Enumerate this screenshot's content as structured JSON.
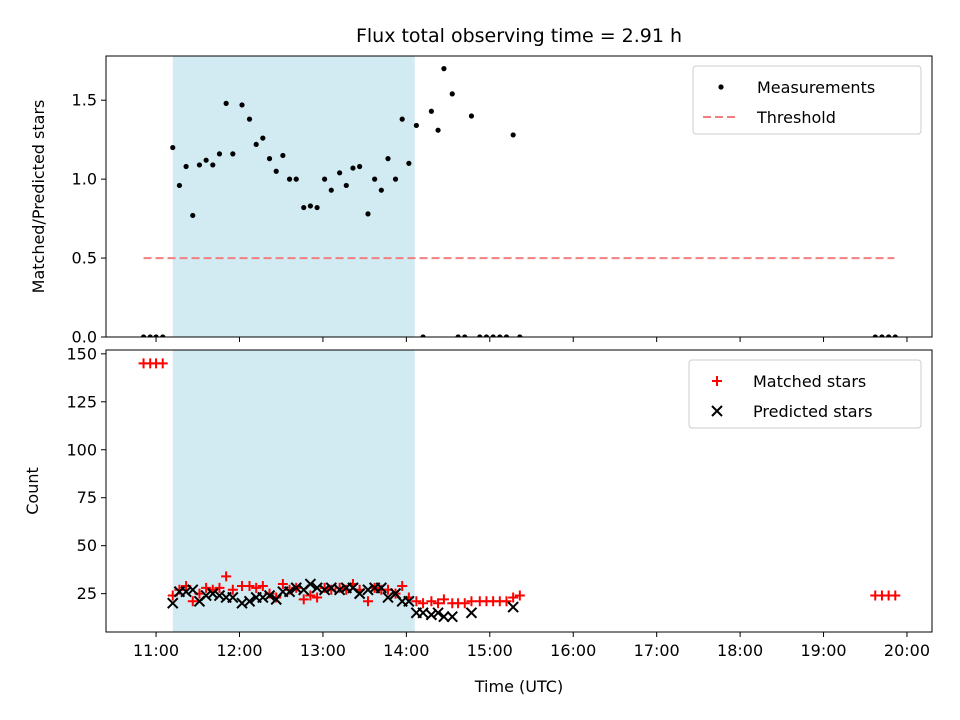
{
  "chart_data": [
    {
      "type": "scatter",
      "title": "Flux total observing time = 2.91 h",
      "ylabel": "Matched/Predicted stars",
      "xlabel": "",
      "ylim": [
        0,
        1.78
      ],
      "yticks": [
        "0.0",
        "0.5",
        "1.0",
        "1.5"
      ],
      "yticks_values": [
        0,
        0.5,
        1.0,
        1.5
      ],
      "legend_position": "top-right",
      "shaded_region": [
        11.2,
        14.1
      ],
      "shade_color": "#add8e6",
      "series": [
        {
          "name": "Measurements",
          "color": "#000000",
          "marker": "dot",
          "points": [
            [
              10.85,
              0
            ],
            [
              10.93,
              0
            ],
            [
              11.0,
              0
            ],
            [
              11.08,
              0
            ],
            [
              11.2,
              1.2
            ],
            [
              11.28,
              0.96
            ],
            [
              11.36,
              1.08
            ],
            [
              11.44,
              0.77
            ],
            [
              11.52,
              1.09
            ],
            [
              11.6,
              1.12
            ],
            [
              11.68,
              1.09
            ],
            [
              11.76,
              1.16
            ],
            [
              11.84,
              1.48
            ],
            [
              11.92,
              1.16
            ],
            [
              12.03,
              1.47
            ],
            [
              12.12,
              1.38
            ],
            [
              12.2,
              1.22
            ],
            [
              12.28,
              1.26
            ],
            [
              12.36,
              1.13
            ],
            [
              12.44,
              1.05
            ],
            [
              12.52,
              1.15
            ],
            [
              12.6,
              1.0
            ],
            [
              12.68,
              1.0
            ],
            [
              12.77,
              0.82
            ],
            [
              12.85,
              0.83
            ],
            [
              12.93,
              0.82
            ],
            [
              13.02,
              1.0
            ],
            [
              13.1,
              0.93
            ],
            [
              13.2,
              1.04
            ],
            [
              13.28,
              0.96
            ],
            [
              13.36,
              1.07
            ],
            [
              13.44,
              1.08
            ],
            [
              13.54,
              0.78
            ],
            [
              13.62,
              1.0
            ],
            [
              13.7,
              0.93
            ],
            [
              13.78,
              1.13
            ],
            [
              13.87,
              1.0
            ],
            [
              13.95,
              1.38
            ],
            [
              14.03,
              1.1
            ],
            [
              14.12,
              1.34
            ],
            [
              14.2,
              0
            ],
            [
              14.3,
              1.43
            ],
            [
              14.38,
              1.31
            ],
            [
              14.45,
              1.7
            ],
            [
              14.55,
              1.54
            ],
            [
              14.62,
              0
            ],
            [
              14.7,
              0
            ],
            [
              14.78,
              1.4
            ],
            [
              14.88,
              0
            ],
            [
              14.96,
              0
            ],
            [
              15.04,
              0
            ],
            [
              15.12,
              0
            ],
            [
              15.2,
              0
            ],
            [
              15.28,
              1.28
            ],
            [
              15.36,
              0
            ],
            [
              19.62,
              0
            ],
            [
              19.7,
              0
            ],
            [
              19.78,
              0
            ],
            [
              19.86,
              0
            ]
          ]
        },
        {
          "name": "Threshold",
          "color": "#f08080",
          "style": "dashed",
          "points": [
            [
              10.85,
              0.5
            ],
            [
              19.85,
              0.5
            ]
          ]
        }
      ]
    },
    {
      "type": "scatter",
      "title": "",
      "xlabel": "Time (UTC)",
      "ylabel": "Count",
      "ylim": [
        5,
        152
      ],
      "yticks": [
        "25",
        "50",
        "75",
        "100",
        "125",
        "150"
      ],
      "yticks_values": [
        25,
        50,
        75,
        100,
        125,
        150
      ],
      "xlim": [
        10.4,
        20.3
      ],
      "xticks": [
        "11:00",
        "12:00",
        "13:00",
        "14:00",
        "15:00",
        "16:00",
        "17:00",
        "18:00",
        "19:00",
        "20:00"
      ],
      "xticks_values": [
        11,
        12,
        13,
        14,
        15,
        16,
        17,
        18,
        19,
        20
      ],
      "legend_position": "top-right",
      "shaded_region": [
        11.2,
        14.1
      ],
      "shade_color": "#add8e6",
      "series": [
        {
          "name": "Matched stars",
          "color": "#ff0000",
          "marker": "plus",
          "points": [
            [
              10.85,
              145
            ],
            [
              10.93,
              145
            ],
            [
              11.0,
              145
            ],
            [
              11.08,
              145
            ],
            [
              11.2,
              24
            ],
            [
              11.28,
              27
            ],
            [
              11.36,
              29
            ],
            [
              11.44,
              21
            ],
            [
              11.52,
              25
            ],
            [
              11.6,
              28
            ],
            [
              11.68,
              27
            ],
            [
              11.76,
              28
            ],
            [
              11.84,
              34
            ],
            [
              11.92,
              27
            ],
            [
              12.03,
              29
            ],
            [
              12.12,
              29
            ],
            [
              12.2,
              28
            ],
            [
              12.28,
              29
            ],
            [
              12.36,
              25
            ],
            [
              12.44,
              23
            ],
            [
              12.52,
              30
            ],
            [
              12.6,
              27
            ],
            [
              12.68,
              28
            ],
            [
              12.77,
              22
            ],
            [
              12.85,
              24
            ],
            [
              12.93,
              23
            ],
            [
              13.02,
              28
            ],
            [
              13.1,
              27
            ],
            [
              13.2,
              28
            ],
            [
              13.28,
              27
            ],
            [
              13.36,
              30
            ],
            [
              13.44,
              27
            ],
            [
              13.54,
              21
            ],
            [
              13.62,
              28
            ],
            [
              13.7,
              27
            ],
            [
              13.78,
              27
            ],
            [
              13.87,
              25
            ],
            [
              13.95,
              29
            ],
            [
              14.03,
              23
            ],
            [
              14.12,
              21
            ],
            [
              14.2,
              20
            ],
            [
              14.3,
              21
            ],
            [
              14.38,
              20
            ],
            [
              14.45,
              22
            ],
            [
              14.55,
              20
            ],
            [
              14.62,
              20
            ],
            [
              14.7,
              20
            ],
            [
              14.78,
              21
            ],
            [
              14.88,
              21
            ],
            [
              14.96,
              21
            ],
            [
              15.04,
              21
            ],
            [
              15.12,
              21
            ],
            [
              15.2,
              21
            ],
            [
              15.28,
              23
            ],
            [
              15.36,
              24
            ],
            [
              19.62,
              24
            ],
            [
              19.7,
              24
            ],
            [
              19.78,
              24
            ],
            [
              19.86,
              24
            ]
          ]
        },
        {
          "name": "Predicted stars",
          "color": "#000000",
          "marker": "x",
          "points": [
            [
              11.2,
              20
            ],
            [
              11.28,
              26
            ],
            [
              11.36,
              26
            ],
            [
              11.44,
              27
            ],
            [
              11.52,
              21
            ],
            [
              11.6,
              24
            ],
            [
              11.68,
              25
            ],
            [
              11.76,
              24
            ],
            [
              11.84,
              23
            ],
            [
              11.92,
              23
            ],
            [
              12.03,
              20
            ],
            [
              12.12,
              21
            ],
            [
              12.2,
              23
            ],
            [
              12.28,
              23
            ],
            [
              12.36,
              24
            ],
            [
              12.44,
              22
            ],
            [
              12.52,
              26
            ],
            [
              12.6,
              26
            ],
            [
              12.68,
              28
            ],
            [
              12.77,
              27
            ],
            [
              12.85,
              30
            ],
            [
              12.93,
              28
            ],
            [
              13.02,
              27
            ],
            [
              13.1,
              28
            ],
            [
              13.2,
              27
            ],
            [
              13.28,
              28
            ],
            [
              13.36,
              28
            ],
            [
              13.44,
              25
            ],
            [
              13.54,
              27
            ],
            [
              13.62,
              28
            ],
            [
              13.7,
              28
            ],
            [
              13.78,
              23
            ],
            [
              13.87,
              25
            ],
            [
              13.95,
              21
            ],
            [
              14.03,
              21
            ],
            [
              14.12,
              15
            ],
            [
              14.2,
              15
            ],
            [
              14.3,
              14
            ],
            [
              14.38,
              15
            ],
            [
              14.45,
              13
            ],
            [
              14.55,
              13
            ],
            [
              14.78,
              15
            ],
            [
              15.28,
              18
            ]
          ]
        }
      ]
    }
  ]
}
